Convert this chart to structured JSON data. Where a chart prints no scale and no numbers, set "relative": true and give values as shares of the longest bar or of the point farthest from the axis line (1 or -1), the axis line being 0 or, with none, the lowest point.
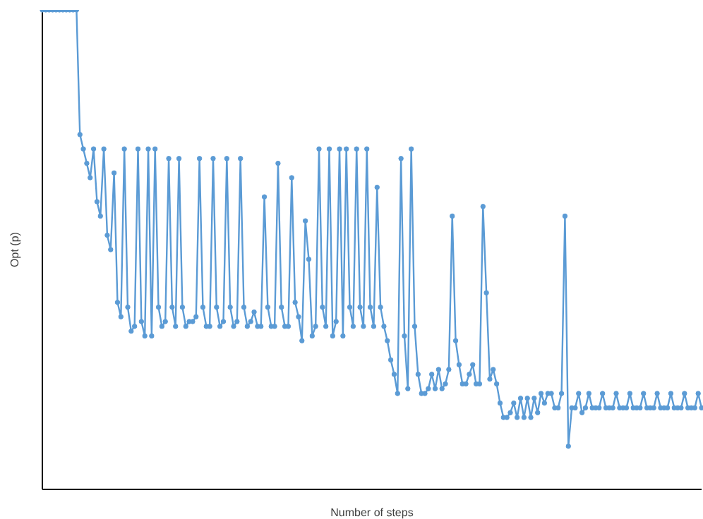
{
  "chart_data": {
    "type": "line",
    "relative": true,
    "xlabel": "Number of steps",
    "ylabel": "Opt (p)",
    "marker": "circle",
    "line_style": "solid",
    "categories": [
      null,
      null,
      null,
      null,
      null,
      null,
      null,
      null,
      null,
      null,
      null,
      null,
      null,
      null,
      null,
      null,
      null,
      null,
      null,
      null,
      null,
      null,
      null,
      null,
      null,
      null,
      null,
      null,
      null,
      null,
      null,
      null,
      null,
      null,
      null,
      null,
      null,
      null,
      null,
      null,
      null,
      null,
      null,
      null,
      null,
      null,
      null,
      null,
      null,
      null,
      null,
      null,
      null,
      null,
      null,
      null,
      null,
      null,
      null,
      null,
      null,
      null,
      null,
      null,
      null,
      null,
      null,
      null,
      null,
      null,
      null,
      null,
      null,
      null,
      null,
      null,
      null,
      null,
      null,
      null,
      null,
      null,
      null,
      null,
      null,
      null,
      null,
      null,
      null,
      null,
      null,
      null,
      null,
      null,
      null,
      null,
      null,
      null,
      null,
      null,
      null,
      null,
      null,
      null,
      null,
      null,
      null,
      null,
      null,
      null,
      null,
      null,
      null,
      null,
      null,
      null,
      null,
      null,
      null,
      null,
      null,
      null,
      null,
      null,
      null,
      null,
      null,
      null,
      null,
      null,
      null,
      null,
      null,
      null,
      null,
      null,
      null,
      null,
      null,
      null,
      null,
      null,
      null,
      null,
      null,
      null,
      null,
      null,
      null,
      null,
      null,
      null,
      null,
      null,
      null,
      null,
      null,
      null,
      null,
      null,
      null,
      null,
      null,
      null,
      null,
      null,
      null,
      null,
      null,
      null,
      null,
      null,
      null,
      null,
      null,
      null,
      null,
      null,
      null,
      null,
      null,
      null,
      null,
      null,
      null,
      null,
      null,
      null,
      null,
      null,
      null,
      null,
      null,
      null
    ],
    "series": [
      {
        "color": "#5b9bd5",
        "values": [
          1,
          1,
          1,
          1,
          1,
          1,
          1,
          1,
          1,
          1,
          1,
          0.74,
          0.71,
          0.68,
          0.65,
          0.71,
          0.6,
          0.57,
          0.71,
          0.53,
          0.5,
          0.66,
          0.39,
          0.36,
          0.71,
          0.38,
          0.33,
          0.34,
          0.71,
          0.35,
          0.32,
          0.71,
          0.32,
          0.71,
          0.38,
          0.34,
          0.35,
          0.69,
          0.38,
          0.34,
          0.69,
          0.38,
          0.34,
          0.35,
          0.35,
          0.36,
          0.69,
          0.38,
          0.34,
          0.34,
          0.69,
          0.38,
          0.34,
          0.35,
          0.69,
          0.38,
          0.34,
          0.35,
          0.69,
          0.38,
          0.34,
          0.35,
          0.37,
          0.34,
          0.34,
          0.61,
          0.38,
          0.34,
          0.34,
          0.68,
          0.38,
          0.34,
          0.34,
          0.65,
          0.39,
          0.36,
          0.31,
          0.56,
          0.48,
          0.32,
          0.34,
          0.71,
          0.38,
          0.34,
          0.71,
          0.32,
          0.35,
          0.71,
          0.32,
          0.71,
          0.38,
          0.34,
          0.71,
          0.38,
          0.34,
          0.71,
          0.38,
          0.34,
          0.63,
          0.38,
          0.34,
          0.31,
          0.27,
          0.24,
          0.2,
          0.69,
          0.32,
          0.21,
          0.71,
          0.34,
          0.24,
          0.2,
          0.2,
          0.21,
          0.24,
          0.21,
          0.25,
          0.21,
          0.22,
          0.25,
          0.57,
          0.31,
          0.26,
          0.22,
          0.22,
          0.24,
          0.26,
          0.22,
          0.22,
          0.59,
          0.41,
          0.23,
          0.25,
          0.22,
          0.18,
          0.15,
          0.15,
          0.16,
          0.18,
          0.15,
          0.19,
          0.15,
          0.19,
          0.15,
          0.19,
          0.16,
          0.2,
          0.18,
          0.2,
          0.2,
          0.17,
          0.17,
          0.2,
          0.57,
          0.09,
          0.17,
          0.17,
          0.2,
          0.16,
          0.17,
          0.2,
          0.17,
          0.17,
          0.17,
          0.2,
          0.17,
          0.17,
          0.17,
          0.2,
          0.17,
          0.17,
          0.17,
          0.2,
          0.17,
          0.17,
          0.17,
          0.2,
          0.17,
          0.17,
          0.17,
          0.2,
          0.17,
          0.17,
          0.17,
          0.2,
          0.17,
          0.17,
          0.17,
          0.2,
          0.17,
          0.17,
          0.17,
          0.2,
          0.17
        ]
      }
    ]
  }
}
